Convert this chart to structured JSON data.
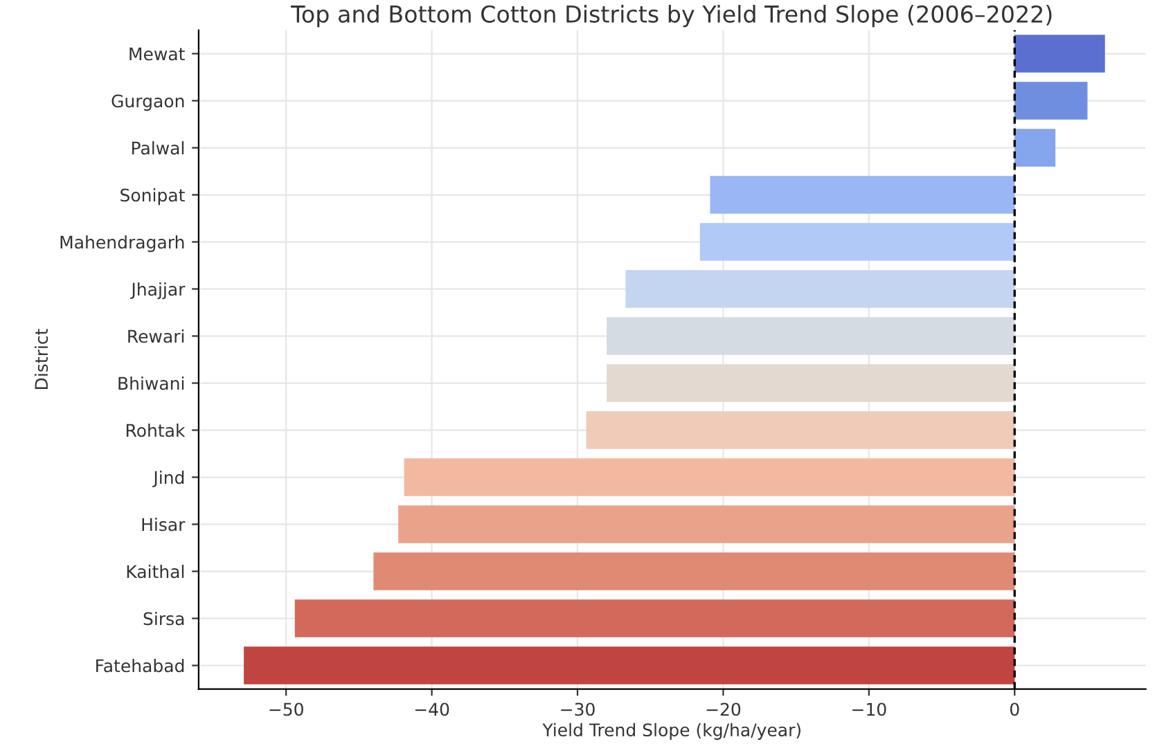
{
  "chart_data": {
    "type": "bar",
    "orientation": "horizontal",
    "title": "Top and Bottom Cotton Districts by Yield Trend Slope (2006–2022)",
    "xlabel": "Yield Trend Slope (kg/ha/year)",
    "ylabel": "District",
    "categories": [
      "Mewat",
      "Gurgaon",
      "Palwal",
      "Sonipat",
      "Mahendragarh",
      "Jhajjar",
      "Rewari",
      "Bhiwani",
      "Rohtak",
      "Jind",
      "Hisar",
      "Kaithal",
      "Sirsa",
      "Fatehabad"
    ],
    "values": [
      6.2,
      5.0,
      2.8,
      -20.9,
      -21.6,
      -26.7,
      -28.0,
      -28.0,
      -29.4,
      -41.9,
      -42.3,
      -44.0,
      -49.4,
      -52.9
    ],
    "colors": [
      "#5a6fd0",
      "#6f8ee0",
      "#85a5ec",
      "#9bb6f4",
      "#b0c9f7",
      "#c4d5f2",
      "#d5dbe3",
      "#e4d9d1",
      "#efcbb8",
      "#f2b9a0",
      "#eba28a",
      "#e08a73",
      "#d2695a",
      "#c0443f"
    ],
    "xlim": [
      -56,
      9
    ],
    "xticks": [
      {
        "value": -50,
        "label": "−50"
      },
      {
        "value": -40,
        "label": "−40"
      },
      {
        "value": -30,
        "label": "−30"
      },
      {
        "value": -20,
        "label": "−20"
      },
      {
        "value": -10,
        "label": "−10"
      },
      0
    ],
    "grid": true,
    "ref_lines": [
      {
        "axis": "x",
        "value": 0,
        "color": "#000000",
        "line_style": "dashed"
      }
    ]
  }
}
